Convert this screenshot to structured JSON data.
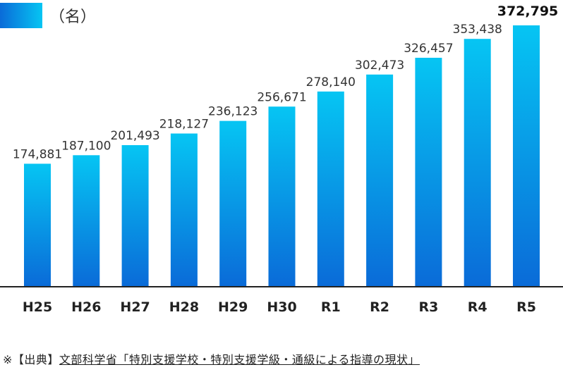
{
  "chart_data": {
    "type": "bar",
    "categories": [
      "H25",
      "H26",
      "H27",
      "H28",
      "H29",
      "H30",
      "R1",
      "R2",
      "R3",
      "R4",
      "R5"
    ],
    "values": [
      174881,
      187100,
      201493,
      218127,
      236123,
      256671,
      278140,
      302473,
      326457,
      353438,
      372795
    ],
    "value_labels": [
      "174,881",
      "187,100",
      "201,493",
      "218,127",
      "236,123",
      "256,671",
      "278,140",
      "302,473",
      "326,457",
      "353,438",
      "372,795"
    ],
    "highlight_index": 10,
    "unit_label": "（名）",
    "ylim": [
      0,
      372795
    ],
    "grid": false,
    "bar_gradient": [
      "#06c5f3",
      "#0a6bd8"
    ]
  },
  "source": {
    "prefix": "※【出典】",
    "document": "文部科学省「特別支援学校・特別支援学級・通級による指導の現状」"
  }
}
